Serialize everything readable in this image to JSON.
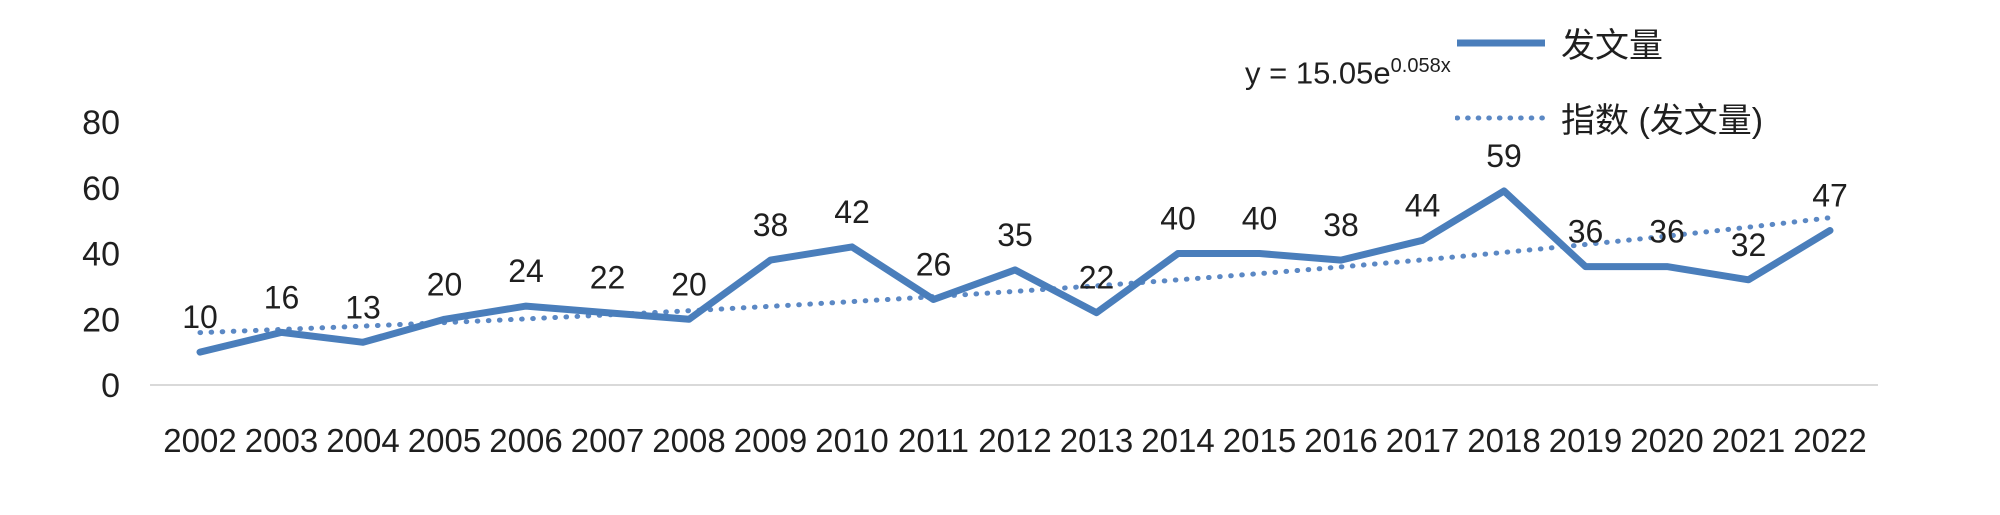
{
  "chart_data": {
    "type": "line",
    "title": "",
    "x": [
      2002,
      2003,
      2004,
      2005,
      2006,
      2007,
      2008,
      2009,
      2010,
      2011,
      2012,
      2013,
      2014,
      2015,
      2016,
      2017,
      2018,
      2019,
      2020,
      2021,
      2022
    ],
    "series": [
      {
        "name": "发文量",
        "values": [
          10,
          16,
          13,
          20,
          24,
          22,
          20,
          38,
          42,
          26,
          35,
          22,
          40,
          40,
          38,
          44,
          59,
          36,
          36,
          32,
          47
        ]
      }
    ],
    "trendline": {
      "name": "指数 (发文量)",
      "type": "exponential",
      "a": 15.05,
      "b": 0.058
    },
    "yticks": [
      0,
      20,
      40,
      60,
      80
    ],
    "ylim": [
      0,
      80
    ],
    "grid": false,
    "legend_position": "top-right",
    "colors": {
      "series": "#4a7ebb",
      "trend": "#5b88c4",
      "axis_line": "#d9d9d9",
      "text": "#1f1f1f"
    }
  },
  "legend": {
    "items": [
      {
        "label": "发文量",
        "style": "solid"
      },
      {
        "label": "指数 (发文量)",
        "style": "dotted"
      }
    ]
  },
  "equation": {
    "base": "y = 15.05e",
    "exponent": "0.058x"
  }
}
